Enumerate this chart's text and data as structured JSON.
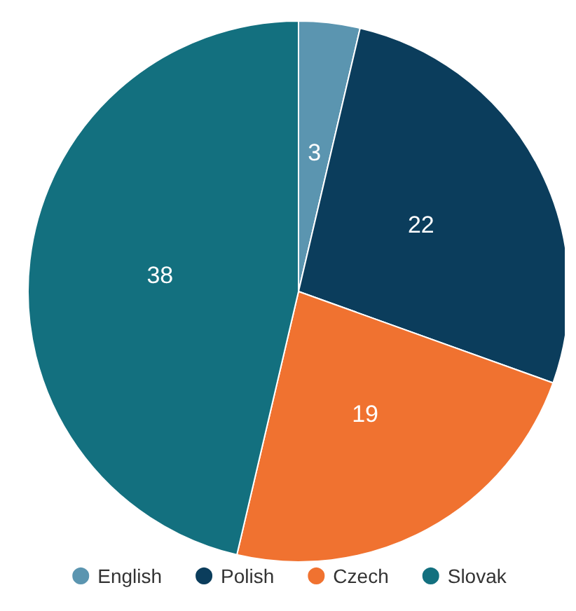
{
  "chart_data": {
    "type": "pie",
    "categories": [
      "English",
      "Polish",
      "Czech",
      "Slovak"
    ],
    "values": [
      3,
      22,
      19,
      38
    ],
    "colors": [
      "#5b95b0",
      "#0b3d5c",
      "#f07230",
      "#13707f"
    ],
    "data_labels": true,
    "legend": "bottom"
  }
}
